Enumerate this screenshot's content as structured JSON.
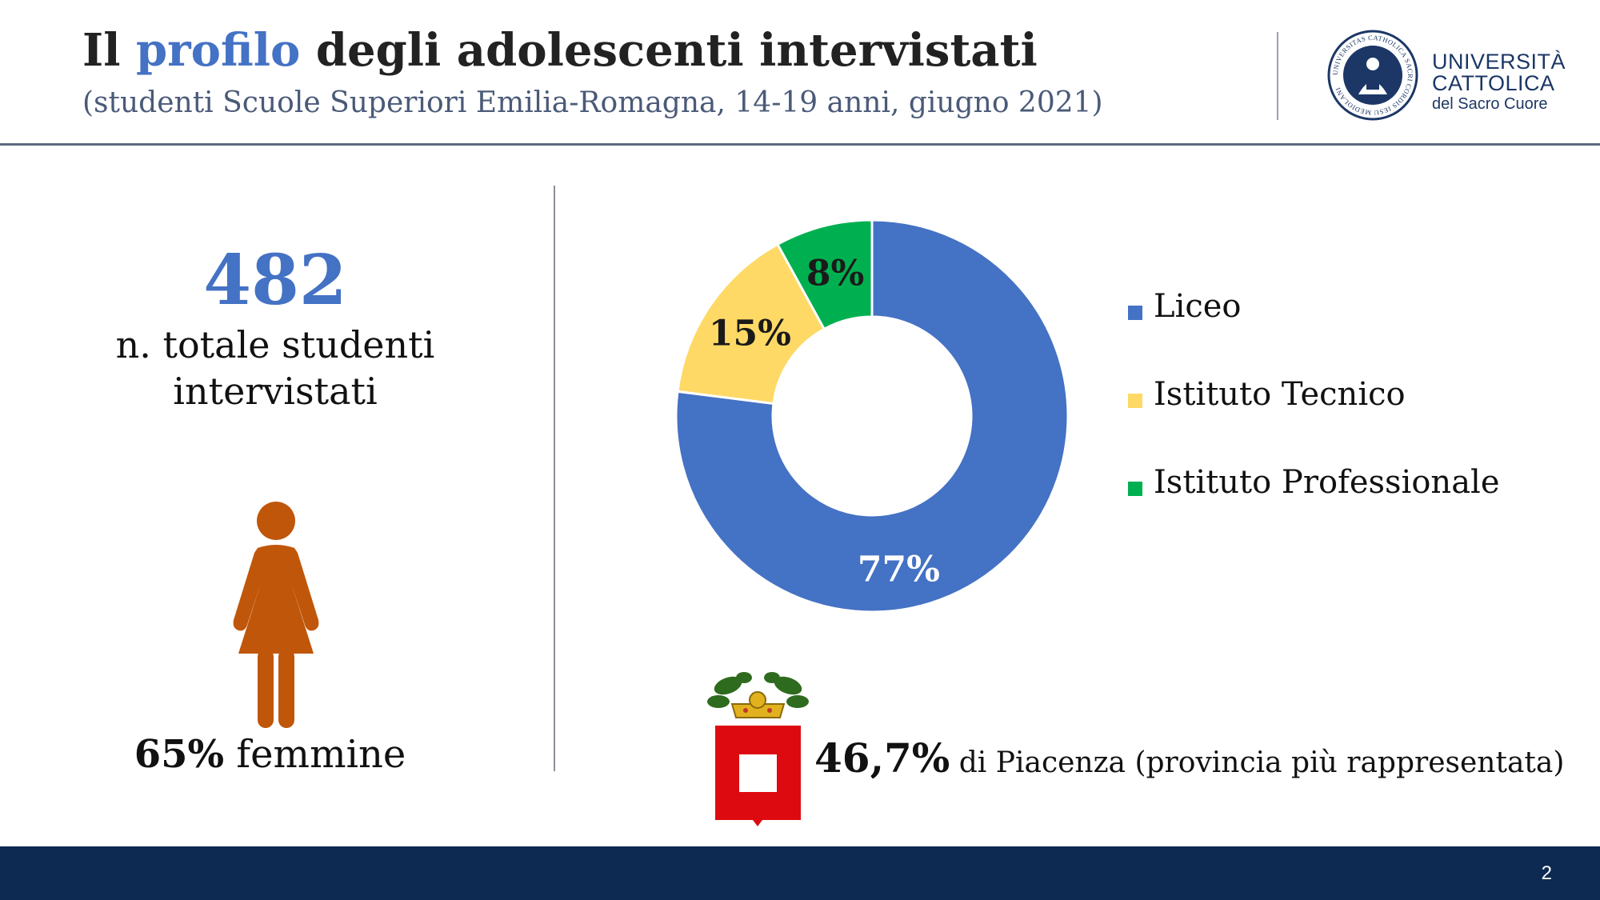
{
  "header": {
    "title_pre": "Il ",
    "title_highlight": "profilo",
    "title_post": " degli adolescenti intervistati",
    "subtitle": "(studenti Scuole Superiori Emilia-Romagna, 14-19 anni, giugno 2021)",
    "logo": {
      "line1": "UNIVERSITÀ",
      "line2": "CATTOLICA",
      "line3": "del Sacro Cuore",
      "seal_text": "UNIVERSITAS CATHOLICA SACRI CORDIS IESU MEDIOLANI"
    }
  },
  "stats": {
    "total_number": "482",
    "total_caption_line1": "n. totale studenti",
    "total_caption_line2": "intervistati",
    "female_percent": "65%",
    "female_label": " femmine",
    "province_percent": "46,7%",
    "province_label": " di Piacenza (provincia più rappresentata)"
  },
  "chart_data": {
    "type": "pie",
    "donut": true,
    "categories": [
      "Liceo",
      "Istituto Tecnico",
      "Istituto Professionale"
    ],
    "values": [
      77,
      15,
      8
    ],
    "labels": [
      "77%",
      "15%",
      "8%"
    ],
    "colors": [
      "#4472c4",
      "#ffd966",
      "#00b050"
    ],
    "label_colors": [
      "#ffffff",
      "#1a1a1a",
      "#1a1a1a"
    ],
    "legend_position": "right"
  },
  "colors": {
    "accent": "#4472c4",
    "female_icon": "#c0560a",
    "crest_red": "#dd0b10",
    "footer": "#0d2a52"
  },
  "footer": {
    "page_number": "2"
  }
}
